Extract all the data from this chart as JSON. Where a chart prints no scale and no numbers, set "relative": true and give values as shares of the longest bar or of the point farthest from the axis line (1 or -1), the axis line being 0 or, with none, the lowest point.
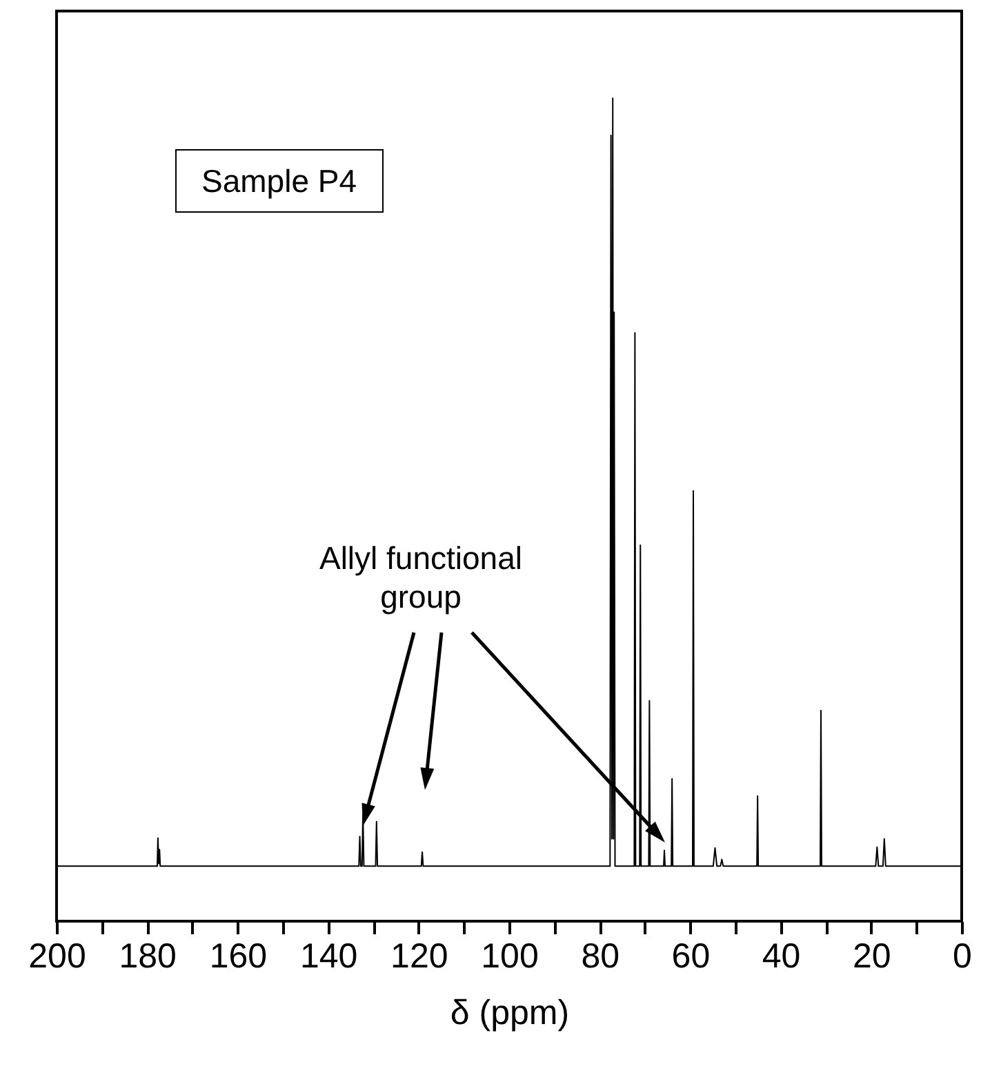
{
  "chart_data": {
    "type": "line",
    "xlabel": "δ (ppm)",
    "relative": true,
    "tick_labels": "x",
    "color": "#000000",
    "annotations": [
      "Sample P4",
      "Allyl functional group"
    ],
    "xlim": [
      200,
      0
    ],
    "xticks": [
      200,
      {
        "value": 190,
        "label": null
      },
      180,
      {
        "value": 170,
        "label": null
      },
      160,
      {
        "value": 150,
        "label": null
      },
      140,
      {
        "value": 130,
        "label": null
      },
      120,
      {
        "value": 110,
        "label": null
      },
      100,
      {
        "value": 90,
        "label": null
      },
      80,
      {
        "value": 70,
        "label": null
      },
      60,
      {
        "value": 50,
        "label": null
      },
      40,
      {
        "value": 30,
        "label": null
      },
      20,
      {
        "value": 10,
        "label": null
      },
      0
    ],
    "x": [
      200,
      177.75,
      177.6,
      177.45,
      177.25,
      177.1,
      133.2,
      133.0,
      132.8,
      132.5,
      132.3,
      132.1,
      129.5,
      129.3,
      129.1,
      119.4,
      119.2,
      119.0,
      77.7,
      77.5,
      77.3,
      77.1,
      76.95,
      76.8,
      76.6,
      72.35,
      72.2,
      72.05,
      71.15,
      71.0,
      70.85,
      69.15,
      69.0,
      68.85,
      65.85,
      65.7,
      65.55,
      64.15,
      64.0,
      63.85,
      59.45,
      59.3,
      59.15,
      54.9,
      54.5,
      54.1,
      53.3,
      53.0,
      52.7,
      45.25,
      45.1,
      44.95,
      31.25,
      31.1,
      30.95,
      19.0,
      18.7,
      18.4,
      17.4,
      17.1,
      16.8,
      0
    ],
    "values": [
      0.067,
      0.067,
      0.101,
      0.07,
      0.087,
      0.067,
      0.067,
      0.103,
      0.067,
      0.067,
      0.13,
      0.067,
      0.067,
      0.121,
      0.067,
      0.067,
      0.084,
      0.067,
      0.067,
      0.955,
      0.1,
      1.0,
      0.1,
      0.74,
      0.067,
      0.067,
      0.715,
      0.067,
      0.067,
      0.457,
      0.067,
      0.067,
      0.268,
      0.067,
      0.067,
      0.086,
      0.067,
      0.067,
      0.173,
      0.067,
      0.067,
      0.523,
      0.067,
      0.067,
      0.089,
      0.067,
      0.067,
      0.075,
      0.067,
      0.067,
      0.152,
      0.067,
      0.067,
      0.256,
      0.067,
      0.067,
      0.09,
      0.067,
      0.067,
      0.1,
      0.067,
      0.067
    ]
  }
}
